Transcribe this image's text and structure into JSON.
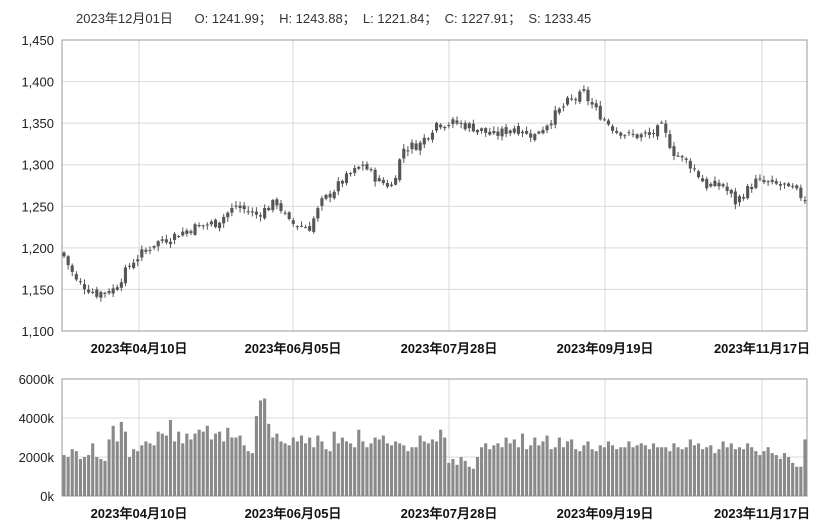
{
  "readout": {
    "date": "2023年12月01日",
    "text": "O: 1241.99；  H: 1243.88；  L: 1221.84；  C: 1227.91；  S: 1233.45"
  },
  "colors": {
    "candle": "#555555",
    "volume": "#8a8a8a",
    "grid": "#d9d9d9",
    "axis": "#999999"
  },
  "chart_data": [
    {
      "type": "candlestick",
      "title": "",
      "ylabel": "",
      "ylim": [
        1100,
        1450
      ],
      "y_ticks": [
        "1,100",
        "1,150",
        "1,200",
        "1,250",
        "1,300",
        "1,350",
        "1,400",
        "1,450"
      ],
      "x_ticks": [
        "2023年04月10日",
        "2023年06月05日",
        "2023年07月28日",
        "2023年09月19日",
        "2023年11月17日"
      ],
      "grid": true,
      "close_anchors": [
        [
          0,
          1190
        ],
        [
          3,
          1160
        ],
        [
          8,
          1145
        ],
        [
          12,
          1150
        ],
        [
          17,
          1185
        ],
        [
          22,
          1205
        ],
        [
          27,
          1215
        ],
        [
          32,
          1225
        ],
        [
          37,
          1230
        ],
        [
          42,
          1250
        ],
        [
          47,
          1240
        ],
        [
          52,
          1255
        ],
        [
          55,
          1230
        ],
        [
          60,
          1225
        ],
        [
          63,
          1255
        ],
        [
          68,
          1280
        ],
        [
          73,
          1300
        ],
        [
          77,
          1280
        ],
        [
          80,
          1275
        ],
        [
          83,
          1320
        ],
        [
          87,
          1325
        ],
        [
          91,
          1350
        ],
        [
          96,
          1350
        ],
        [
          100,
          1345
        ],
        [
          105,
          1335
        ],
        [
          110,
          1345
        ],
        [
          115,
          1335
        ],
        [
          119,
          1355
        ],
        [
          123,
          1375
        ],
        [
          127,
          1385
        ],
        [
          130,
          1365
        ],
        [
          134,
          1345
        ],
        [
          138,
          1335
        ],
        [
          143,
          1335
        ],
        [
          146,
          1345
        ],
        [
          149,
          1315
        ],
        [
          153,
          1300
        ],
        [
          157,
          1275
        ],
        [
          161,
          1275
        ],
        [
          164,
          1255
        ],
        [
          169,
          1280
        ],
        [
          175,
          1275
        ],
        [
          178,
          1270
        ],
        [
          182,
          1255
        ],
        [
          186,
          1245
        ],
        [
          190,
          1235
        ],
        [
          192,
          1228
        ]
      ]
    },
    {
      "type": "bar",
      "title": "",
      "ylim": [
        0,
        6000
      ],
      "y_ticks": [
        "0k",
        "2000k",
        "4000k",
        "6000k"
      ],
      "x_ticks": [
        "2023年04月10日",
        "2023年06月05日",
        "2023年07月28日",
        "2023年09月19日",
        "2023年11月17日"
      ],
      "grid": true,
      "volume_profile": [
        2100,
        2000,
        2400,
        2300,
        1900,
        2000,
        2100,
        2700,
        2000,
        1900,
        1800,
        2900,
        3600,
        2800,
        3800,
        3300,
        2000,
        2400,
        2300,
        2600,
        2800,
        2700,
        2600,
        3300,
        3200,
        3100,
        3900,
        2800,
        3300,
        2700,
        3200,
        2900,
        3200,
        3400,
        3300,
        3600,
        2900,
        3200,
        3300,
        2800,
        3500,
        3000,
        3000,
        3100,
        2600,
        2300,
        2200,
        4100,
        4900,
        5000,
        3700,
        3000,
        3200,
        2800,
        2700,
        2600,
        3000,
        2800,
        3100,
        2700,
        3000,
        2500,
        3100,
        2800,
        2400,
        2300,
        3300,
        2700,
        3000,
        2800,
        2700,
        2500,
        3400,
        2800,
        2500,
        2700,
        3000,
        2900,
        3100,
        2700,
        2600,
        2800,
        2700,
        2600,
        2300,
        2500,
        2500,
        3100,
        2800,
        2700,
        2900,
        2800,
        3400,
        3000,
        1700,
        1900,
        1600,
        2000,
        1800,
        1500,
        1400,
        2000,
        2500,
        2700,
        2400,
        2600,
        2700,
        2500,
        3000,
        2700,
        2900,
        2500,
        3200,
        2400,
        2600,
        3000,
        2600,
        2800,
        3100,
        2400,
        2500,
        3000,
        2500,
        2800,
        2900,
        2400,
        2300,
        2600,
        2800,
        2400,
        2300,
        2600,
        2500,
        2800,
        2600,
        2400,
        2500,
        2500,
        2800,
        2500,
        2600,
        2700,
        2600,
        2400,
        2700,
        2500,
        2500,
        2500,
        2300,
        2700,
        2500,
        2400,
        2500,
        2900,
        2600,
        2700,
        2400,
        2500,
        2600,
        2200,
        2400,
        2800,
        2500,
        2700,
        2400,
        2500,
        2400,
        2700,
        2500,
        2300,
        2100,
        2300,
        2500,
        2200,
        2100,
        1900,
        2200,
        2000,
        1700,
        1500,
        1500,
        2900
      ]
    }
  ]
}
